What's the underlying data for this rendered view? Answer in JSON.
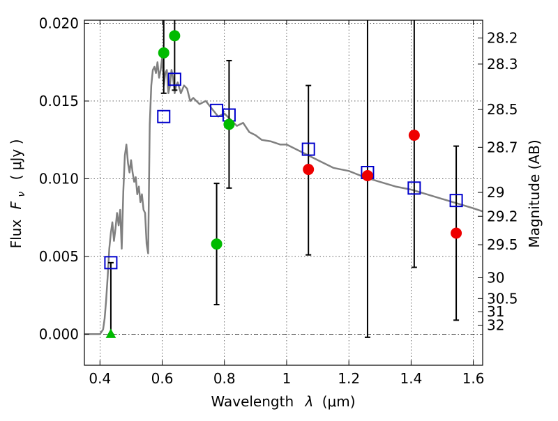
{
  "chart_data": {
    "type": "scatter",
    "xlabel_prefix": "Wavelength",
    "xlabel_symbol": "λ",
    "xlabel_unit": "(μm)",
    "ylabel_prefix": "Flux",
    "ylabel_symbol": "F",
    "ylabel_sub": "ν",
    "ylabel_unit": "( μJy )",
    "y2label": "Magnitude (AB)",
    "xlim": [
      0.35,
      1.63
    ],
    "ylim": [
      -0.002,
      0.0202
    ],
    "x_ticks": [
      0.4,
      0.6,
      0.8,
      1.0,
      1.2,
      1.4,
      1.6
    ],
    "x_tick_labels": [
      "0.4",
      "0.6",
      "0.8",
      "1",
      "1.2",
      "1.4",
      "1.6"
    ],
    "y_ticks": [
      0.0,
      0.005,
      0.01,
      0.015,
      0.02
    ],
    "y_tick_labels": [
      "0.000",
      "0.005",
      "0.010",
      "0.015",
      "0.020"
    ],
    "mag_ticks": [
      28.2,
      28.3,
      28.5,
      28.7,
      29,
      29.2,
      29.5,
      30,
      30.5,
      31,
      32
    ],
    "mag_tick_labels": [
      "28.2",
      "28.3",
      "28.5",
      "28.7",
      "29",
      "29.2",
      "29.5",
      "30",
      "30.5",
      "31",
      "32"
    ],
    "grid": true,
    "colors": {
      "model": "#808080",
      "model_points": "#0000cc",
      "green": "#00bb00",
      "red": "#ee0000",
      "errorbar": "#000000",
      "baseline": "#000000"
    },
    "model_sed": {
      "x": [
        0.35,
        0.4,
        0.41,
        0.415,
        0.42,
        0.425,
        0.43,
        0.435,
        0.44,
        0.445,
        0.45,
        0.455,
        0.46,
        0.465,
        0.47,
        0.475,
        0.48,
        0.485,
        0.49,
        0.495,
        0.5,
        0.505,
        0.51,
        0.515,
        0.52,
        0.525,
        0.53,
        0.535,
        0.54,
        0.545,
        0.55,
        0.555,
        0.56,
        0.565,
        0.57,
        0.575,
        0.58,
        0.585,
        0.59,
        0.595,
        0.6,
        0.605,
        0.61,
        0.615,
        0.62,
        0.625,
        0.63,
        0.635,
        0.64,
        0.645,
        0.65,
        0.66,
        0.67,
        0.68,
        0.69,
        0.7,
        0.72,
        0.74,
        0.76,
        0.78,
        0.8,
        0.82,
        0.84,
        0.86,
        0.88,
        0.9,
        0.92,
        0.95,
        0.98,
        1.0,
        1.05,
        1.1,
        1.15,
        1.2,
        1.25,
        1.3,
        1.35,
        1.4,
        1.45,
        1.5,
        1.55,
        1.6,
        1.63
      ],
      "y": [
        0.0,
        0.0,
        0.0003,
        0.001,
        0.0022,
        0.0038,
        0.0055,
        0.0065,
        0.0072,
        0.006,
        0.0068,
        0.0078,
        0.007,
        0.008,
        0.0055,
        0.0092,
        0.0115,
        0.0122,
        0.011,
        0.0104,
        0.0112,
        0.0104,
        0.0098,
        0.0101,
        0.009,
        0.0095,
        0.0085,
        0.009,
        0.008,
        0.0078,
        0.0058,
        0.0052,
        0.0135,
        0.016,
        0.017,
        0.0172,
        0.0168,
        0.0175,
        0.0165,
        0.017,
        0.0178,
        0.016,
        0.0168,
        0.017,
        0.0155,
        0.016,
        0.017,
        0.0165,
        0.0155,
        0.016,
        0.0162,
        0.0155,
        0.016,
        0.0158,
        0.015,
        0.0152,
        0.0148,
        0.015,
        0.0145,
        0.014,
        0.0142,
        0.0138,
        0.0134,
        0.0136,
        0.013,
        0.0128,
        0.0125,
        0.0124,
        0.0122,
        0.0122,
        0.0117,
        0.0112,
        0.0107,
        0.0105,
        0.0101,
        0.0098,
        0.0095,
        0.0093,
        0.009,
        0.0087,
        0.0084,
        0.0081,
        0.0079
      ]
    },
    "model_points": {
      "x": [
        0.435,
        0.605,
        0.64,
        0.775,
        0.815,
        1.07,
        1.26,
        1.41,
        1.545
      ],
      "y": [
        0.0046,
        0.014,
        0.0164,
        0.0144,
        0.0141,
        0.0119,
        0.0104,
        0.0094,
        0.0086
      ]
    },
    "observations": [
      {
        "x": 0.435,
        "y": 0.0,
        "err_low": 0.0,
        "err_high": 0.0046,
        "color": "green",
        "marker": "triangle"
      },
      {
        "x": 0.605,
        "y": 0.0181,
        "err_low": 0.0155,
        "err_high": 0.0203,
        "color": "green",
        "marker": "circle"
      },
      {
        "x": 0.64,
        "y": 0.0192,
        "err_low": 0.0157,
        "err_high": 0.0203,
        "color": "green",
        "marker": "circle"
      },
      {
        "x": 0.775,
        "y": 0.0058,
        "err_low": 0.0019,
        "err_high": 0.0097,
        "color": "green",
        "marker": "circle"
      },
      {
        "x": 0.815,
        "y": 0.0135,
        "err_low": 0.0094,
        "err_high": 0.0176,
        "color": "green",
        "marker": "circle"
      },
      {
        "x": 1.07,
        "y": 0.0106,
        "err_low": 0.0051,
        "err_high": 0.016,
        "color": "red",
        "marker": "circle"
      },
      {
        "x": 1.26,
        "y": 0.0102,
        "err_low": -0.0002,
        "err_high": 0.0203,
        "color": "red",
        "marker": "circle"
      },
      {
        "x": 1.41,
        "y": 0.0128,
        "err_low": 0.0043,
        "err_high": 0.0203,
        "color": "red",
        "marker": "circle"
      },
      {
        "x": 1.545,
        "y": 0.0065,
        "err_low": 0.0009,
        "err_high": 0.0121,
        "color": "red",
        "marker": "circle"
      }
    ]
  }
}
